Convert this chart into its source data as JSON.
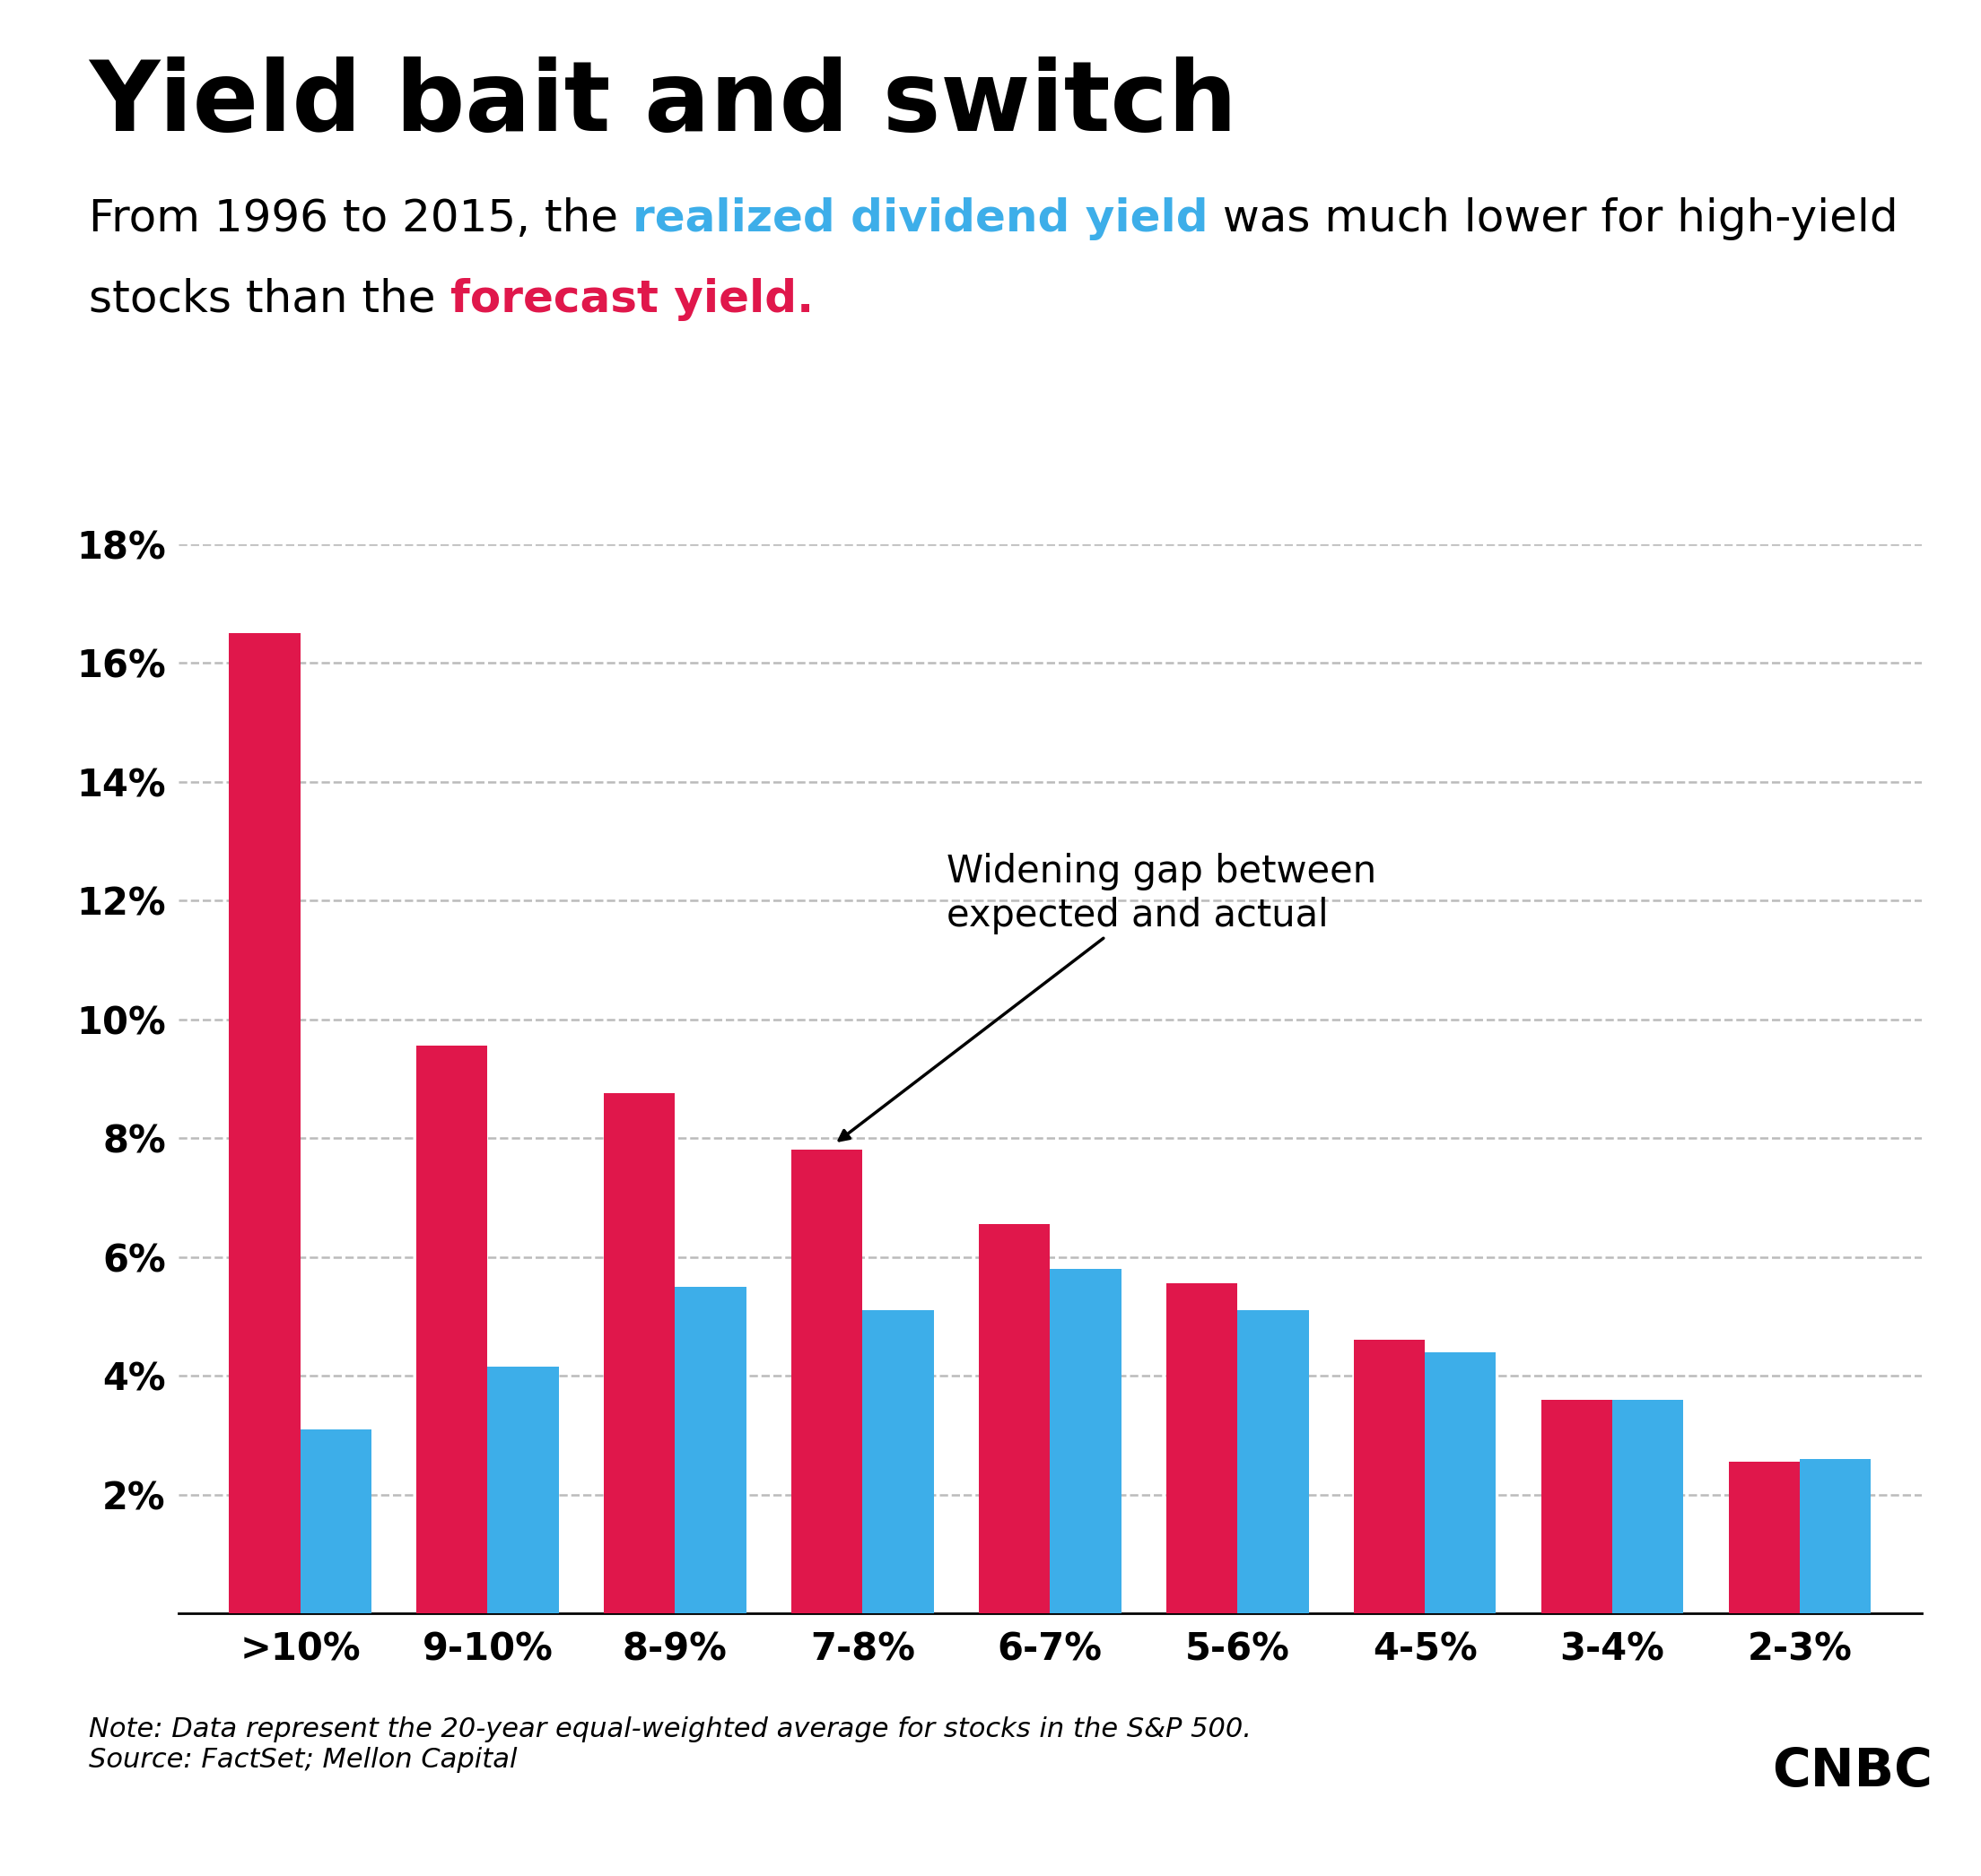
{
  "title": "Yield bait and switch",
  "categories": [
    ">10%",
    "9-10%",
    "8-9%",
    "7-8%",
    "6-7%",
    "5-6%",
    "4-5%",
    "3-4%",
    "2-3%"
  ],
  "forecast_values": [
    16.5,
    9.55,
    8.75,
    7.8,
    6.55,
    5.55,
    4.6,
    3.6,
    2.55
  ],
  "realized_values": [
    3.1,
    4.15,
    5.5,
    5.1,
    5.8,
    5.1,
    4.4,
    3.6,
    2.6
  ],
  "forecast_color": "#e0174b",
  "realized_color": "#3daee9",
  "ylim": [
    0,
    18
  ],
  "yticks": [
    2,
    4,
    6,
    8,
    10,
    12,
    14,
    16,
    18
  ],
  "ytick_labels": [
    "2%",
    "4%",
    "6%",
    "8%",
    "10%",
    "12%",
    "14%",
    "16%",
    "18%"
  ],
  "annotation_text": "Widening gap between\nexpected and actual",
  "background_color": "#ffffff",
  "grid_color": "#bbbbbb",
  "bar_width": 0.38,
  "line1_parts": [
    [
      "From 1996 to 2015, the ",
      "#000000",
      false
    ],
    [
      "realized dividend yield",
      "#3daee9",
      true
    ],
    [
      " was much lower for high-yield",
      "#000000",
      false
    ]
  ],
  "line2_parts": [
    [
      "stocks than the ",
      "#000000",
      false
    ],
    [
      "forecast yield.",
      "#e0174b",
      true
    ]
  ],
  "note_text": "Note: Data represent the 20-year equal-weighted average for stocks in the S&P 500.\nSource: FactSet; Mellon Capital"
}
